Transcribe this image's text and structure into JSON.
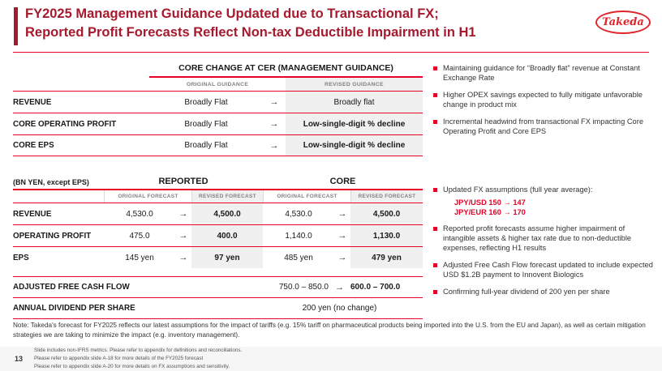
{
  "slide": {
    "title_line1": "FY2025 Management Guidance Updated due to Transactional FX;",
    "title_line2": "Reported Profit Forecasts Reflect Non-tax Deductible Impairment in H1",
    "logo_text": "Takeda",
    "page_number": "13"
  },
  "symbols": {
    "arrow": "→"
  },
  "colors": {
    "takeda_red": "#E60027",
    "title_red": "#A6192E"
  },
  "guidance_table": {
    "title": "CORE CHANGE AT CER (MANAGEMENT GUIDANCE)",
    "col_original": "ORIGINAL GUIDANCE",
    "col_revised": "REVISED GUIDANCE",
    "rows": [
      {
        "label": "REVENUE",
        "original": "Broadly Flat",
        "revised": "Broadly flat"
      },
      {
        "label": "CORE OPERATING PROFIT",
        "original": "Broadly Flat",
        "revised": "Low-single-digit % decline"
      },
      {
        "label": "CORE EPS",
        "original": "Broadly Flat",
        "revised": "Low-single-digit % decline"
      }
    ]
  },
  "guidance_bullets": [
    {
      "text": "Maintaining guidance for “Broadly flat” revenue at Constant Exchange Rate"
    },
    {
      "text": "Higher OPEX savings expected to fully mitigate unfavorable change in product mix"
    },
    {
      "text": "Incremental headwind from transactional FX impacting Core Operating Profit and Core EPS"
    }
  ],
  "forecast_table": {
    "unit_label": "(BN YEN, except EPS)",
    "group_reported": "REPORTED",
    "group_core": "CORE",
    "col_original": "ORIGINAL FORECAST",
    "col_revised": "REVISED FORECAST",
    "rows": [
      {
        "label": "REVENUE",
        "reported_original": "4,530.0",
        "reported_revised": "4,500.0",
        "core_original": "4,530.0",
        "core_revised": "4,500.0"
      },
      {
        "label": "OPERATING PROFIT",
        "reported_original": "475.0",
        "reported_revised": "400.0",
        "core_original": "1,140.0",
        "core_revised": "1,130.0"
      },
      {
        "label": "EPS",
        "reported_original": "145 yen",
        "reported_revised": "97 yen",
        "core_original": "485 yen",
        "core_revised": "479 yen"
      }
    ],
    "afcf": {
      "label": "ADJUSTED FREE CASH FLOW",
      "original": "750.0 – 850.0",
      "revised": "600.0 – 700.0"
    },
    "dividend": {
      "label": "ANNUAL DIVIDEND PER SHARE",
      "value": "200 yen (no change)"
    }
  },
  "forecast_bullets": [
    {
      "text": "Updated FX assumptions (full year average):"
    },
    {
      "text": "Reported profit forecasts assume higher impairment of intangible assets & higher tax rate due to non-deductible expenses, reflecting H1 results"
    },
    {
      "text": "Adjusted Free Cash Flow forecast updated to include expected USD $1.2B payment to Innovent Biologics"
    },
    {
      "text": "Confirming full-year dividend of 200 yen per share"
    }
  ],
  "fx_assumptions": [
    "JPY/USD 150 → 147",
    "JPY/EUR 160 → 170"
  ],
  "note": "Note: Takeda's forecast for FY2025 reflects our latest assumptions for the impact of tariffs (e.g. 15% tariff on pharmaceutical products being imported into the U.S. from the EU and Japan), as well as certain mitigation strategies we are taking to minimize the impact (e.g. inventory management).",
  "footnotes": [
    "Slide includes non-IFRS metrics. Please refer to appendix for definitions and reconciliations.",
    "Please refer to appendix slide A-18 for more details of the FY2025 forecast",
    "Please refer to appendix slide A-20 for more details on FX assumptions and sensitivity."
  ]
}
